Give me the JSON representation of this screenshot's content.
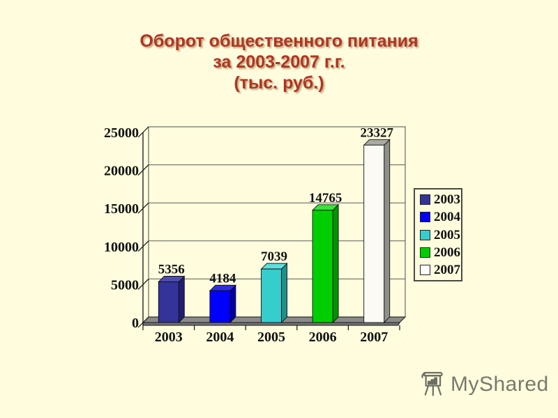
{
  "slide": {
    "background_color": "#FFFDDE",
    "title": {
      "line1": "Оборот общественного питания",
      "line2": "за 2003-2007 г.г.",
      "line3": "(тыс. руб.)",
      "color": "#B13422"
    }
  },
  "chart_data": {
    "type": "bar",
    "style": "3d-column",
    "title": "Оборот общественного питания за 2003-2007 г.г. (тыс. руб.)",
    "categories": [
      "2003",
      "2004",
      "2005",
      "2006",
      "2007"
    ],
    "values": [
      5356,
      4184,
      7039,
      14765,
      23327
    ],
    "data_labels": [
      "5356",
      "4184",
      "7039",
      "14765",
      "23327"
    ],
    "ylim": [
      0,
      25000
    ],
    "ytick_step": 5000,
    "ytick_labels": [
      "0",
      "5000",
      "10000",
      "15000",
      "20000",
      "25000"
    ],
    "grid": true,
    "xlabel": "",
    "ylabel": "",
    "bar_colors": [
      {
        "front": "#333399",
        "top": "#4D4DAE",
        "side": "#1F1F70"
      },
      {
        "front": "#0000FE",
        "top": "#2E2EDC",
        "side": "#0000A6"
      },
      {
        "front": "#36CDCD",
        "top": "#63DCDC",
        "side": "#1E8F8F"
      },
      {
        "front": "#00CE00",
        "top": "#3BE23B",
        "side": "#009400"
      },
      {
        "front": "#FBFBF3",
        "top": "#ABABA3",
        "side": "#8F8F8B"
      }
    ],
    "floor_color": "#8A8A8A",
    "floor_front_color": "#747474",
    "grid_color": "#5A5A5A",
    "axis_color": "#151515",
    "legend": {
      "position": "right",
      "entries": [
        {
          "label": "2003",
          "color": "#333399"
        },
        {
          "label": "2004",
          "color": "#0000FE"
        },
        {
          "label": "2005",
          "color": "#36CDCD"
        },
        {
          "label": "2006",
          "color": "#00CE00"
        },
        {
          "label": "2007",
          "color": "#FFFFFF"
        }
      ]
    }
  },
  "watermark": {
    "text": "MyShared",
    "icon": "presentation-easel-icon",
    "color": "#6B6B60"
  }
}
